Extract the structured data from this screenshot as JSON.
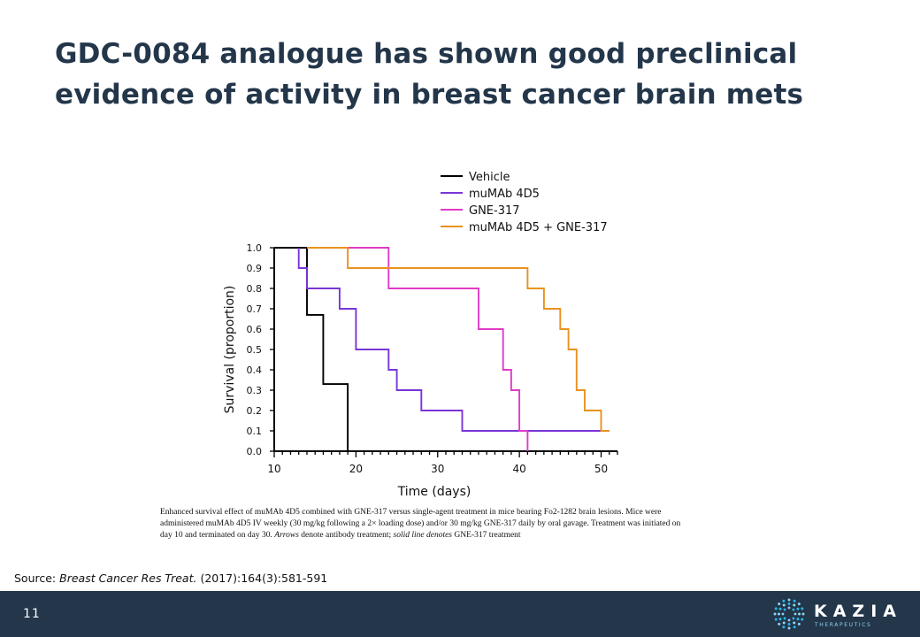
{
  "slide": {
    "title_line1": "GDC-0084 analogue has shown good preclinical",
    "title_line2": "evidence of activity in breast cancer brain mets",
    "caption_before_arrows": "Enhanced survival effect of muMAb 4D5 combined with GNE-317 versus single-agent treatment in mice bearing Fo2-1282 brain lesions. Mice were administered muMAb 4D5 IV weekly (30 mg/kg following a 2× loading dose) and/or 30 mg/kg GNE-317 daily by oral gavage. Treatment was initiated on day 10 and terminated on day 30. ",
    "caption_arrows": "Arrows",
    "caption_middle": " denote antibody treatment; ",
    "caption_solid": "solid line denotes",
    "caption_end": " GNE-317 treatment",
    "source_prefix": "Source: ",
    "source_journal": "Breast Cancer Res Treat.",
    "source_rest": " (2017):164(3):581-591",
    "page_number": "11",
    "logo_name": "KAZIA",
    "logo_sub": "THERAPEUTICS"
  },
  "chart_data": {
    "type": "line",
    "step": true,
    "xlabel": "Time (days)",
    "ylabel": "Survival (proportion)",
    "xlim": [
      10,
      52
    ],
    "ylim": [
      0,
      1.0
    ],
    "xticks": [
      10,
      20,
      30,
      40,
      50
    ],
    "yticks": [
      0.0,
      0.1,
      0.2,
      0.3,
      0.4,
      0.5,
      0.6,
      0.7,
      0.8,
      0.9,
      1.0
    ],
    "ytick_labels": [
      "0.0",
      "0.1",
      "0.2",
      "0.3",
      "0.4",
      "0.5",
      "0.6",
      "0.7",
      "0.8",
      "0.9",
      "1.0"
    ],
    "legend_position": "top-right",
    "grid": false,
    "series": [
      {
        "name": "Vehicle",
        "color": "#000000",
        "points": [
          [
            10,
            1.0
          ],
          [
            14,
            1.0
          ],
          [
            14,
            0.67
          ],
          [
            16,
            0.67
          ],
          [
            16,
            0.33
          ],
          [
            19,
            0.33
          ],
          [
            19,
            0.0
          ]
        ]
      },
      {
        "name": "muMAb 4D5",
        "color": "#7a35d8",
        "points": [
          [
            13,
            1.0
          ],
          [
            13,
            0.9
          ],
          [
            14,
            0.9
          ],
          [
            14,
            0.8
          ],
          [
            18,
            0.8
          ],
          [
            18,
            0.7
          ],
          [
            20,
            0.7
          ],
          [
            20,
            0.5
          ],
          [
            24,
            0.5
          ],
          [
            24,
            0.4
          ],
          [
            25,
            0.4
          ],
          [
            25,
            0.3
          ],
          [
            28,
            0.3
          ],
          [
            28,
            0.2
          ],
          [
            33,
            0.2
          ],
          [
            33,
            0.1
          ],
          [
            51,
            0.1
          ]
        ]
      },
      {
        "name": "GNE-317",
        "color": "#e03bc6",
        "points": [
          [
            19,
            1.0
          ],
          [
            24,
            1.0
          ],
          [
            24,
            0.8
          ],
          [
            35,
            0.8
          ],
          [
            35,
            0.6
          ],
          [
            38,
            0.6
          ],
          [
            38,
            0.4
          ],
          [
            39,
            0.4
          ],
          [
            39,
            0.3
          ],
          [
            40,
            0.3
          ],
          [
            40,
            0.1
          ],
          [
            41,
            0.1
          ],
          [
            41,
            0.0
          ]
        ]
      },
      {
        "name": "muMAb 4D5 + GNE-317",
        "color": "#e8921e",
        "points": [
          [
            14,
            1.0
          ],
          [
            19,
            1.0
          ],
          [
            19,
            0.9
          ],
          [
            41,
            0.9
          ],
          [
            41,
            0.8
          ],
          [
            43,
            0.8
          ],
          [
            43,
            0.7
          ],
          [
            45,
            0.7
          ],
          [
            45,
            0.6
          ],
          [
            46,
            0.6
          ],
          [
            46,
            0.5
          ],
          [
            47,
            0.5
          ],
          [
            47,
            0.3
          ],
          [
            48,
            0.3
          ],
          [
            48,
            0.2
          ],
          [
            50,
            0.2
          ],
          [
            50,
            0.1
          ],
          [
            51,
            0.1
          ]
        ]
      }
    ]
  }
}
